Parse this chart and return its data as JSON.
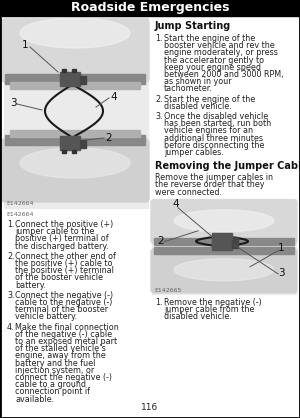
{
  "title": "Roadside Emergencies",
  "page_number": "116",
  "bg_color": "#ffffff",
  "border_color": "#000000",
  "header_bg": "#000000",
  "header_text_color": "#ffffff",
  "header_fontsize": 9,
  "section_jump_header": "Jump Starting",
  "jump_starting_steps": [
    "Start the engine of the booster vehicle and rev the engine moderately, or press the accelerator gently to keep your engine speed between 2000 and 3000 RPM, as shown in your tachometer.",
    "Start the engine of the disabled vehicle.",
    "Once the disabled vehicle has been started, run both vehicle engines for an additional three minutes before disconnecting the jumper cables."
  ],
  "section_removing_header": "Removing the Jumper Cables",
  "removing_intro": "Remove the jumper cables in the reverse order that they were connected.",
  "removing_steps": [
    "Remove the negative (-) jumper cable from the disabled vehicle."
  ],
  "left_steps": [
    "Connect the positive (+) jumper cable to the positive (+) terminal of the discharged battery.",
    "Connect the other end of the positive (+) cable to the positive (+) terminal of the booster vehicle battery.",
    "Connect the negative (-) cable to the negative (-) terminal of the booster vehicle battery.",
    "Make the final connection of the negative (-) cable to an exposed metal part of the stalled vehicle’s engine, away from the battery and the fuel injection system, or connect the negative (-) cable to a ground connection point if available."
  ],
  "fig_label_left": "E142664",
  "fig_label_right": "E142665",
  "car_light": "#e0e0e0",
  "car_mid": "#c0c0c0",
  "car_dark": "#999999",
  "car_bumper": "#888888",
  "battery_color": "#555555",
  "cable_color": "#1a1a1a",
  "text_color": "#222222",
  "label_color": "#111111",
  "fig_label_color": "#666666",
  "body_text_size": 5.8,
  "step_num_size": 5.8,
  "section_header_size": 7.0,
  "diagram_label_size": 7.5
}
